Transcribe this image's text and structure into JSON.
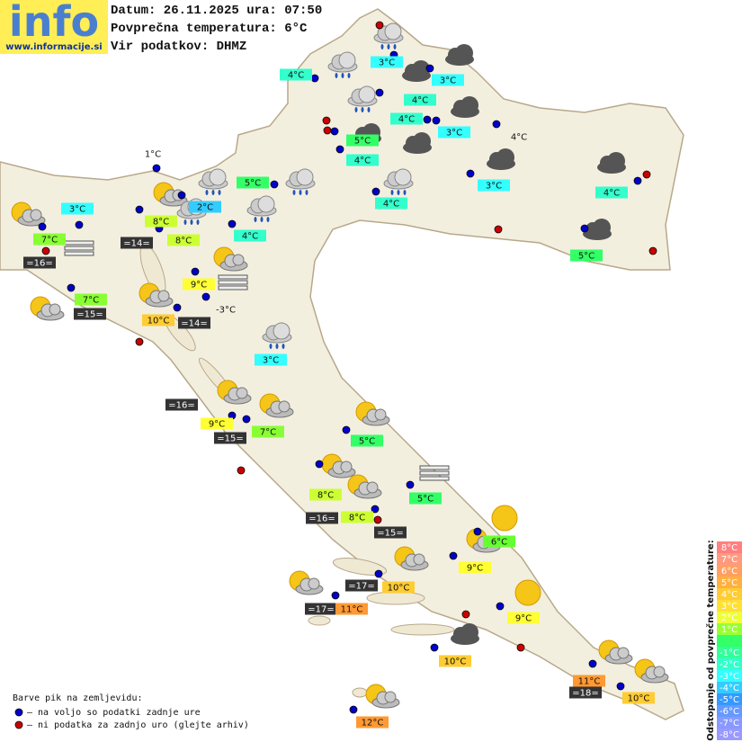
{
  "header": {
    "logo": "info",
    "website": "www.informacije.si",
    "date_line": "Datum: 26.11.2025 ura: 07:50",
    "avg_line": "Povprečna temperatura: 6°C",
    "source_line": "Vir podatkov: DHMZ"
  },
  "stations": [
    {
      "label": "3°C",
      "color": "#33ffff"
    },
    {
      "label": "4°C",
      "color": "#33ffcc"
    },
    {
      "label": "3°C",
      "color": "#33ffff"
    },
    {
      "label": "4°C",
      "color": "#33ffcc"
    },
    {
      "label": "4°C",
      "color": "#33ffcc"
    },
    {
      "label": "3°C",
      "color": "#33ffff"
    },
    {
      "label": "4°C"
    },
    {
      "label": "5°C",
      "color": "#33ff66"
    },
    {
      "label": "4°C",
      "color": "#33ffcc"
    },
    {
      "label": "1°C"
    },
    {
      "label": "5°C",
      "color": "#33ff66"
    },
    {
      "label": "3°C",
      "color": "#33ffff"
    },
    {
      "label": "4°C",
      "color": "#33ffcc"
    },
    {
      "label": "3°C",
      "color": "#33ffff"
    },
    {
      "label": "2°C",
      "color": "#33ccff"
    },
    {
      "label": "4°C",
      "color": "#33ffcc"
    },
    {
      "label": "8°C",
      "color": "#ccff33"
    },
    {
      "label": "4°C",
      "color": "#33ffcc"
    },
    {
      "label": "7°C",
      "color": "#88ff33"
    },
    {
      "label": "=14=",
      "color": "#333333"
    },
    {
      "label": "8°C",
      "color": "#ccff33"
    },
    {
      "label": "5°C",
      "color": "#33ff66"
    },
    {
      "label": "=16=",
      "color": "#333333"
    },
    {
      "label": "9°C",
      "color": "#ffff33"
    },
    {
      "label": "7°C",
      "color": "#88ff33"
    },
    {
      "label": "-3°C"
    },
    {
      "label": "=15=",
      "color": "#333333"
    },
    {
      "label": "10°C",
      "color": "#ffcc33"
    },
    {
      "label": "=14=",
      "color": "#333333"
    },
    {
      "label": "3°C",
      "color": "#33ffff"
    },
    {
      "label": "=16=",
      "color": "#333333"
    },
    {
      "label": "9°C",
      "color": "#ffff33"
    },
    {
      "label": "7°C",
      "color": "#88ff33"
    },
    {
      "label": "=15=",
      "color": "#333333"
    },
    {
      "label": "5°C",
      "color": "#33ff66"
    },
    {
      "label": "5°C",
      "color": "#33ff66"
    },
    {
      "label": "8°C",
      "color": "#ccff33"
    },
    {
      "label": "=16=",
      "color": "#333333"
    },
    {
      "label": "8°C",
      "color": "#ccff33"
    },
    {
      "label": "=15=",
      "color": "#333333"
    },
    {
      "label": "6°C",
      "color": "#66ff33"
    },
    {
      "label": "9°C",
      "color": "#ffff33"
    },
    {
      "label": "=17=",
      "color": "#333333"
    },
    {
      "label": "10°C",
      "color": "#ffcc33"
    },
    {
      "label": "9°C",
      "color": "#ffff33"
    },
    {
      "label": "=17=",
      "color": "#333333"
    },
    {
      "label": "11°C",
      "color": "#ff9933"
    },
    {
      "label": "10°C",
      "color": "#ffcc33"
    },
    {
      "label": "11°C",
      "color": "#ff9933"
    },
    {
      "label": "=18=",
      "color": "#333333"
    },
    {
      "label": "10°C",
      "color": "#ffcc33"
    },
    {
      "label": "12°C",
      "color": "#ff9933"
    }
  ],
  "legend": {
    "title": "Barve pik na zemljevidu:",
    "items": [
      {
        "label": "– na voljo so podatki zadnje ure",
        "color": "#0000cc"
      },
      {
        "label": "– ni podatka za zadnjo uro (glejte arhiv)",
        "color": "#cc0000"
      }
    ]
  },
  "scale": {
    "title": "Odstopanje od povprečne temperature:",
    "steps": [
      {
        "label": "8°C",
        "color": "#ff8080"
      },
      {
        "label": "7°C",
        "color": "#ff9a80"
      },
      {
        "label": "6°C",
        "color": "#ffa060"
      },
      {
        "label": "5°C",
        "color": "#ffb040"
      },
      {
        "label": "4°C",
        "color": "#ffcc33"
      },
      {
        "label": "3°C",
        "color": "#ffe033"
      },
      {
        "label": "2°C",
        "color": "#eeff33"
      },
      {
        "label": "1°C",
        "color": "#99ff33"
      },
      {
        "label": null,
        "color": "#33ff66"
      },
      {
        "label": "-1°C",
        "color": "#33ff99"
      },
      {
        "label": "-2°C",
        "color": "#33ffcc"
      },
      {
        "label": "-3°C",
        "color": "#33ffff"
      },
      {
        "label": "-4°C",
        "color": "#33ccff"
      },
      {
        "label": "-5°C",
        "color": "#3399ff"
      },
      {
        "label": "-6°C",
        "color": "#6699ff"
      },
      {
        "label": "-7°C",
        "color": "#8899ff"
      },
      {
        "label": "-8°C",
        "color": "#9999ff"
      }
    ]
  }
}
